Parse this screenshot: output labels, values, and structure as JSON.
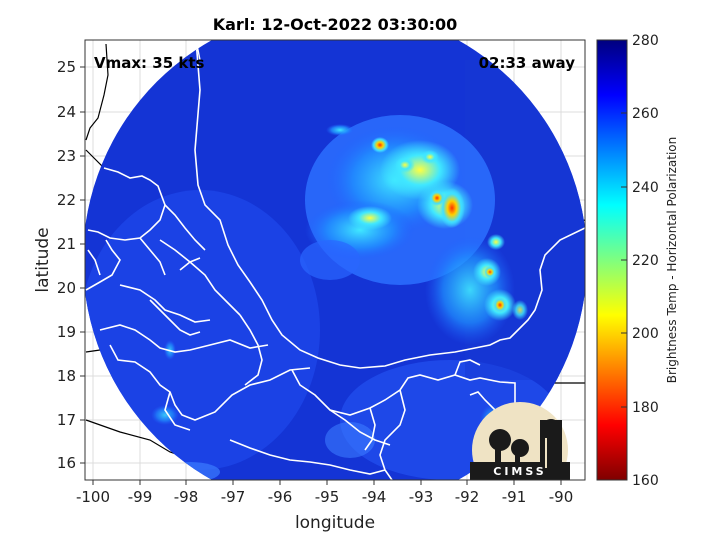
{
  "title": "Karl: 12-Oct-2022 03:30:00",
  "annotations": {
    "vmax": "Vmax: 35 kts",
    "away": "02:33 away"
  },
  "axes": {
    "xlabel": "longitude",
    "ylabel": "latitude",
    "xticks": [
      "-100",
      "-99",
      "-98",
      "-97",
      "-96",
      "-95",
      "-94",
      "-93",
      "-92",
      "-91",
      "-90"
    ],
    "yticks": [
      "16",
      "17",
      "18",
      "19",
      "20",
      "21",
      "22",
      "23",
      "24",
      "25"
    ]
  },
  "colorbar": {
    "label": "Brightness Temp - Horizontal Polarization",
    "ticks": [
      "160",
      "180",
      "200",
      "220",
      "240",
      "260",
      "280"
    ],
    "range": [
      160,
      280
    ],
    "colormap": [
      "#7f0000",
      "#ff0000",
      "#ffff00",
      "#00ffff",
      "#0000ff",
      "#00007f"
    ]
  },
  "logo": {
    "text": "CIMSS"
  },
  "colors": {
    "background_field": "#1a3fd6",
    "coast": "#ffffff",
    "outside_coast": "#000000"
  }
}
